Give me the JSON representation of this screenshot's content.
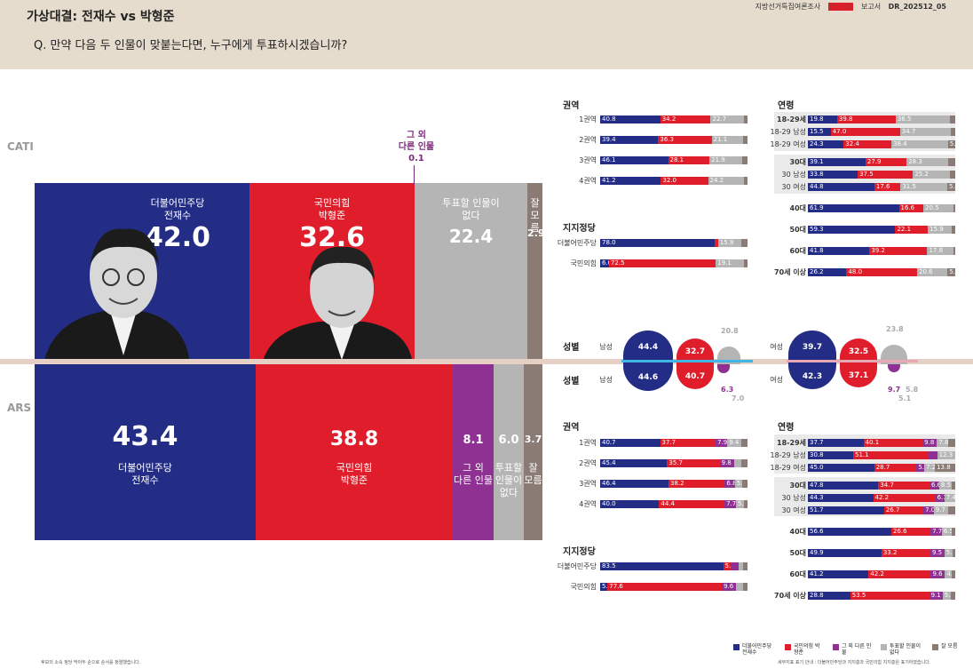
{
  "header": {
    "title": "가상대결: 전재수 vs 박형준",
    "question": "Q. 만약 다음 두 인물이 맞붙는다면, 누구에게 투표하시겠습니까?",
    "meta": [
      "지방선거특집여론조사",
      "부산 01",
      "보고서",
      "DR_202512_05"
    ]
  },
  "colors": {
    "minju": "#232d85",
    "ppp": "#e01e2b",
    "other": "#8e3192",
    "none": "#b5b5b5",
    "dk": "#8a7b74"
  },
  "modes": {
    "cati": "CATI",
    "ars": "ARS"
  },
  "chart_data": {
    "type": "bar",
    "categories": [
      "더불어민주당 전재수",
      "국민의힘 박형준",
      "그 외 다른 인물",
      "투표할 인물이 없다",
      "잘 모름"
    ],
    "series": [
      {
        "name": "CATI",
        "values": [
          42.0,
          32.6,
          0.1,
          22.4,
          2.9
        ]
      },
      {
        "name": "ARS",
        "values": [
          43.4,
          38.8,
          8.1,
          6.0,
          3.7
        ]
      }
    ]
  },
  "main": {
    "cati": {
      "minju_label": "더불어민주당",
      "minju_name": "전재수",
      "minju_value": "42.0",
      "ppp_label": "국민의힘",
      "ppp_name": "박형준",
      "ppp_value": "32.6",
      "other_label1": "그 외",
      "other_label2": "다른 인물",
      "other_value": "0.1",
      "none_label1": "투표할 인물이",
      "none_label2": "없다",
      "none_value": "22.4",
      "dk_label1": "잘",
      "dk_label2": "모름",
      "dk_value": "2.9"
    },
    "ars": {
      "minju_label": "더불어민주당",
      "minju_name": "전재수",
      "minju_value": "43.4",
      "ppp_label": "국민의힘",
      "ppp_name": "박형준",
      "ppp_value": "38.8",
      "other_label1": "그 외",
      "other_label2": "다른 인물",
      "other_value": "8.1",
      "none_label1": "투표할",
      "none_label2": "인물이",
      "none_label3": "없다",
      "none_value": "6.0",
      "dk_label1": "잘",
      "dk_label2": "모름",
      "dk_value": "3.7"
    }
  },
  "breakdown": {
    "region_title": "권역",
    "party_title": "지지정당",
    "age_title": "연령",
    "sex_title": "성별",
    "male": "남성",
    "female": "여성",
    "cati_region": [
      {
        "label": "1권역",
        "v": [
          40.8,
          34.2,
          0,
          22.7,
          2.3
        ],
        "t": [
          "40.8",
          "34.2",
          "",
          "22.7",
          ""
        ]
      },
      {
        "label": "2권역",
        "v": [
          39.4,
          36.3,
          0,
          21.1,
          3.2
        ],
        "t": [
          "39.4",
          "36.3",
          "",
          "21.1",
          ""
        ]
      },
      {
        "label": "3권역",
        "v": [
          46.1,
          28.1,
          0,
          21.9,
          3.9
        ],
        "t": [
          "46.1",
          "28.1",
          "",
          "21.9",
          ""
        ]
      },
      {
        "label": "4권역",
        "v": [
          41.2,
          32.0,
          0,
          24.2,
          2.6
        ],
        "t": [
          "41.2",
          "32.0",
          "",
          "24.2",
          ""
        ]
      }
    ],
    "cati_party": [
      {
        "label": "더불어민주당",
        "v": [
          78.0,
          2.0,
          0,
          15.9,
          4.1
        ],
        "t": [
          "78.0",
          "",
          "",
          "15.9",
          ""
        ]
      },
      {
        "label": "국민의힘",
        "v": [
          6.0,
          72.5,
          0,
          19.1,
          2.4
        ],
        "t": [
          "6.0",
          "72.5",
          "",
          "19.1",
          ""
        ]
      }
    ],
    "cati_age": [
      {
        "label": "18-29세",
        "v": [
          19.8,
          39.8,
          0,
          36.5,
          3.9
        ],
        "t": [
          "19.8",
          "39.8",
          "",
          "36.5",
          ""
        ],
        "bold": true
      },
      {
        "label": "18-29 남성",
        "v": [
          15.5,
          47.0,
          0,
          34.7,
          2.8
        ],
        "t": [
          "15.5",
          "47.0",
          "",
          "34.7",
          ""
        ]
      },
      {
        "label": "18-29 여성",
        "v": [
          24.3,
          32.4,
          0,
          38.4,
          5.0
        ],
        "t": [
          "24.3",
          "32.4",
          "",
          "38.4",
          "5.0"
        ]
      },
      {
        "label": "30대",
        "v": [
          39.1,
          27.9,
          0,
          28.3,
          4.7
        ],
        "t": [
          "39.1",
          "27.9",
          "",
          "28.3",
          ""
        ],
        "bold": true
      },
      {
        "label": "30 남성",
        "v": [
          33.8,
          37.5,
          0,
          25.2,
          3.5
        ],
        "t": [
          "33.8",
          "37.5",
          "",
          "25.2",
          ""
        ]
      },
      {
        "label": "30 여성",
        "v": [
          44.8,
          17.6,
          0,
          31.5,
          5.4
        ],
        "t": [
          "44.8",
          "17.6",
          "",
          "31.5",
          "5.4"
        ]
      },
      {
        "label": "40대",
        "v": [
          61.9,
          16.6,
          0,
          20.5,
          1.0
        ],
        "t": [
          "61.9",
          "16.6",
          "",
          "20.5",
          ""
        ],
        "bold": true
      },
      {
        "label": "50대",
        "v": [
          59.3,
          22.1,
          0,
          15.9,
          2.7
        ],
        "t": [
          "59.3",
          "22.1",
          "",
          "15.9",
          ""
        ],
        "bold": true
      },
      {
        "label": "60대",
        "v": [
          41.8,
          39.2,
          0,
          17.8,
          1.2
        ],
        "t": [
          "41.8",
          "39.2",
          "",
          "17.8",
          ""
        ],
        "bold": true
      },
      {
        "label": "70세 이상",
        "v": [
          26.2,
          48.0,
          0,
          20.6,
          5.3
        ],
        "t": [
          "26.2",
          "48.0",
          "",
          "20.6",
          "5.3"
        ],
        "bold": true
      }
    ],
    "cati_sex": {
      "male": {
        "minju": "44.4",
        "ppp": "32.7",
        "none": "20.8"
      },
      "female": {
        "minju": "39.7",
        "ppp": "32.5",
        "none": "23.8"
      }
    },
    "ars_sex": {
      "male": {
        "minju": "44.6",
        "ppp": "40.7",
        "other": "6.3",
        "dk": "7.0"
      },
      "female": {
        "minju": "42.3",
        "ppp": "37.1",
        "other": "9.7",
        "none": "5.1",
        "dk": "5.8"
      }
    },
    "ars_region": [
      {
        "label": "1권역",
        "v": [
          40.7,
          37.7,
          7.9,
          9.4,
          4.3
        ],
        "t": [
          "40.7",
          "37.7",
          "7.9",
          "9.4",
          ""
        ]
      },
      {
        "label": "2권역",
        "v": [
          45.4,
          35.7,
          9.8,
          5.0,
          4.1
        ],
        "t": [
          "45.4",
          "35.7",
          "9.8",
          "",
          ""
        ]
      },
      {
        "label": "3권역",
        "v": [
          46.4,
          38.2,
          6.8,
          5.1,
          3.5
        ],
        "t": [
          "46.4",
          "38.2",
          "6.8",
          "5.1",
          ""
        ]
      },
      {
        "label": "4권역",
        "v": [
          40.0,
          44.4,
          7.7,
          5.3,
          2.6
        ],
        "t": [
          "40.0",
          "44.4",
          "7.7",
          "5.3",
          ""
        ]
      }
    ],
    "ars_party": [
      {
        "label": "더불어민주당",
        "v": [
          83.5,
          5.3,
          5.0,
          3.4,
          2.8
        ],
        "t": [
          "83.5",
          "5.3",
          "",
          "",
          ""
        ]
      },
      {
        "label": "국민의힘",
        "v": [
          5.0,
          77.6,
          9.6,
          4.8,
          3.0
        ],
        "t": [
          "5.0",
          "77.6",
          "9.6",
          "",
          ""
        ]
      }
    ],
    "ars_age": [
      {
        "label": "18-29세",
        "v": [
          37.7,
          40.1,
          9.8,
          7.8,
          4.6
        ],
        "t": [
          "37.7",
          "40.1",
          "9.8",
          "7.8",
          ""
        ],
        "bold": true
      },
      {
        "label": "18-29 남성",
        "v": [
          30.8,
          51.1,
          6.0,
          12.3,
          0
        ],
        "t": [
          "30.8",
          "51.1",
          "",
          "12.3",
          ""
        ]
      },
      {
        "label": "18-29 여성",
        "v": [
          45.0,
          28.7,
          5.3,
          7.2,
          13.8
        ],
        "t": [
          "45.0",
          "28.7",
          "5.3",
          "7.2",
          "13.8"
        ]
      },
      {
        "label": "30대",
        "v": [
          47.8,
          34.7,
          6.6,
          8.5,
          2.4
        ],
        "t": [
          "47.8",
          "34.7",
          "6.6",
          "8.5",
          ""
        ],
        "bold": true
      },
      {
        "label": "30 남성",
        "v": [
          44.3,
          42.2,
          6.1,
          7.4,
          0
        ],
        "t": [
          "44.3",
          "42.2",
          "6.1",
          "7.4",
          ""
        ]
      },
      {
        "label": "30 여성",
        "v": [
          51.7,
          26.7,
          7.0,
          9.7,
          4.9
        ],
        "t": [
          "51.7",
          "26.7",
          "7.0",
          "9.7",
          ""
        ]
      },
      {
        "label": "40대",
        "v": [
          56.6,
          26.6,
          7.7,
          6.5,
          2.6
        ],
        "t": [
          "56.6",
          "26.6",
          "7.7",
          "6.5",
          ""
        ],
        "bold": true
      },
      {
        "label": "50대",
        "v": [
          49.9,
          33.2,
          9.5,
          5.3,
          2.1
        ],
        "t": [
          "49.9",
          "33.2",
          "9.5",
          "5.3",
          ""
        ],
        "bold": true
      },
      {
        "label": "60대",
        "v": [
          41.2,
          42.2,
          9.6,
          4.4,
          2.6
        ],
        "t": [
          "41.2",
          "42.2",
          "9.6",
          "4.4",
          ""
        ],
        "bold": true
      },
      {
        "label": "70세 이상",
        "v": [
          28.8,
          53.5,
          9.1,
          5.5,
          3.1
        ],
        "t": [
          "28.8",
          "53.5",
          "9.1",
          "5.5",
          ""
        ],
        "bold": true
      }
    ]
  },
  "legend": [
    {
      "label": "더불어민주당 전재수",
      "color": "#232d85"
    },
    {
      "label": "국민의힘 박형준",
      "color": "#e01e2b"
    },
    {
      "label": "그 외 다른 인물",
      "color": "#8e3192"
    },
    {
      "label": "투표할 인물이 없다",
      "color": "#b5b5b5"
    },
    {
      "label": "잘 모름",
      "color": "#8a7b74"
    }
  ],
  "footnotes": {
    "left": "후보의 소속 정당 막아두 순으로 순서를 정렬했습니다.",
    "right": "세부지표 표기 안내 : 더불어민주당과 지지층과 국민의힘 지지층은 표기하였습니다."
  }
}
